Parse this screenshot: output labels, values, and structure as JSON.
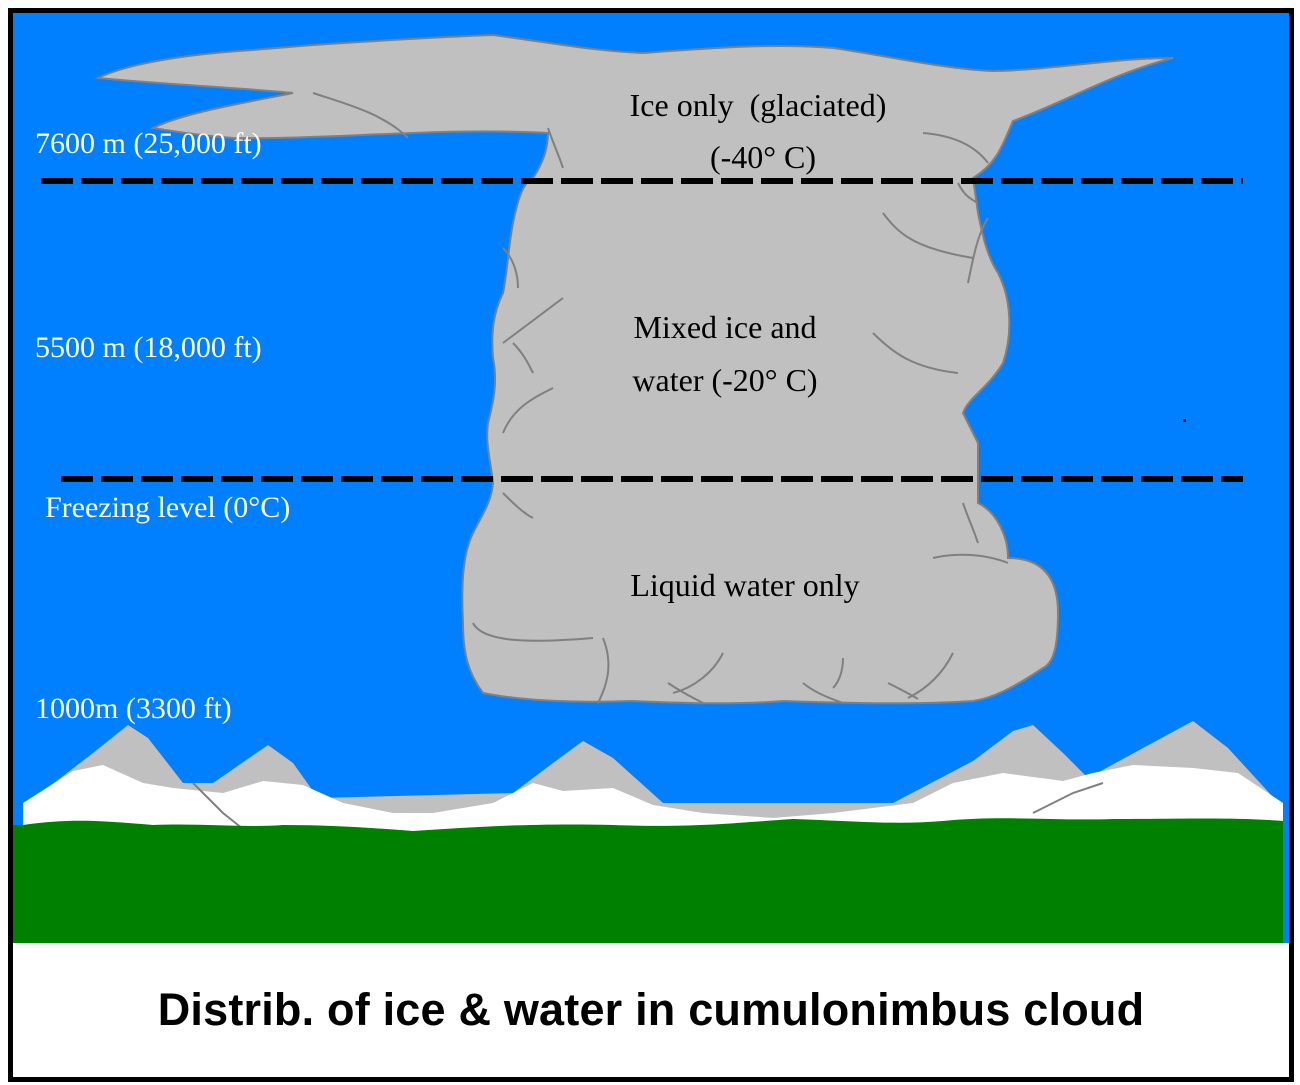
{
  "colors": {
    "sky": "#0080ff",
    "cloud": "#c0c0c0",
    "cloud_edge": "#808080",
    "snow": "#ffffff",
    "rock": "#c0c0c0",
    "ground": "#008000",
    "line": "#000000"
  },
  "altitude_labels": {
    "top": "7600 m (25,000 ft)",
    "middle": "5500 m (18,000 ft)",
    "freezing": "Freezing level (0°C)",
    "base": "1000m (3300 ft)"
  },
  "zones": {
    "ice": {
      "line1": "Ice only  (glaciated)",
      "line2": "(-40° C)"
    },
    "mixed": {
      "line1": "Mixed ice and",
      "line2": "water (-20° C)"
    },
    "liquid": {
      "line1": "Liquid water only"
    }
  },
  "caption": "Distrib. of ice & water in cumulonimbus cloud"
}
